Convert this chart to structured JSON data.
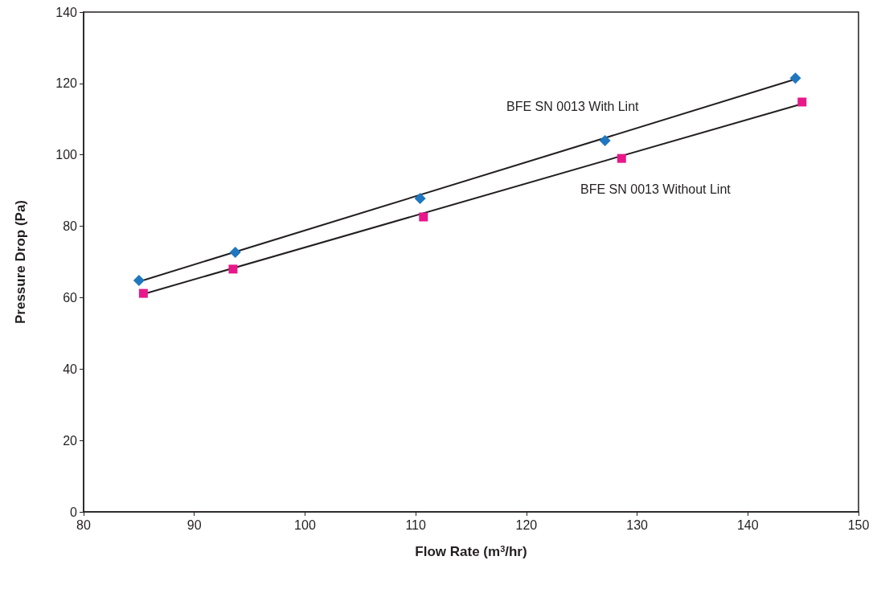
{
  "chart_data": {
    "type": "scatter",
    "xlabel": "Flow Rate (m$^{3}$/hr)",
    "ylabel": "Pressure Drop (Pa)",
    "xlim": [
      80,
      150
    ],
    "xticks": [
      80,
      90,
      100,
      110,
      120,
      130,
      140,
      150
    ],
    "ylim": [
      0,
      140
    ],
    "yticks": [
      0,
      20,
      40,
      60,
      80,
      100,
      120,
      140
    ],
    "grid": false,
    "series": [
      {
        "type": "line",
        "color": "#231f20",
        "x": [
          85.0,
          144.3
        ],
        "values": [
          64.5,
          121.2
        ],
        "marker": "none",
        "line_style": "solid"
      },
      {
        "type": "line",
        "color": "#231f20",
        "x": [
          85.4,
          144.9
        ],
        "values": [
          61.0,
          114.3
        ],
        "marker": "none",
        "line_style": "solid"
      },
      {
        "color": "#1f77c0",
        "marker": "diamond",
        "x": [
          85.0,
          93.7,
          110.4,
          127.1,
          144.3
        ],
        "values": [
          64.8,
          72.7,
          87.8,
          104.0,
          121.5
        ]
      },
      {
        "color": "#e8178a",
        "marker": "square",
        "x": [
          85.4,
          93.5,
          110.7,
          128.6,
          144.9
        ],
        "values": [
          61.2,
          68.0,
          82.6,
          99.0,
          114.8
        ]
      }
    ],
    "annotations": [
      "BFE SN 0013 With Lint",
      "BFE SN 0013 Without Lint"
    ]
  }
}
